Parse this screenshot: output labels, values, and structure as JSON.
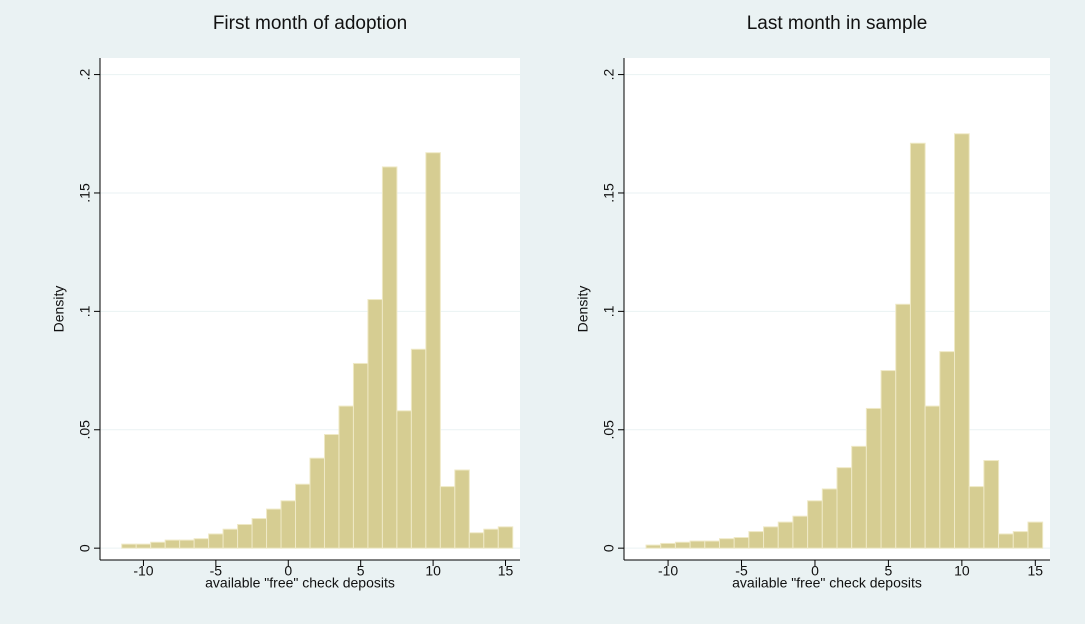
{
  "chart_data": [
    {
      "type": "histogram",
      "title": "First month of adoption",
      "xlabel": "available \"free\" check deposits",
      "ylabel": "Density",
      "bins": [
        -11.5,
        -10.5,
        -9.5,
        -8.5,
        -7.5,
        -6.5,
        -5.5,
        -4.5,
        -3.5,
        -2.5,
        -1.5,
        -0.5,
        0.5,
        1.5,
        2.5,
        3.5,
        4.5,
        5.5,
        6.5,
        7.5,
        8.5,
        9.5,
        10.5,
        11.5,
        12.5,
        13.5,
        14.5,
        15.5
      ],
      "values": [
        0.0017,
        0.0017,
        0.0025,
        0.0034,
        0.0034,
        0.004,
        0.006,
        0.008,
        0.01,
        0.0125,
        0.0165,
        0.02,
        0.027,
        0.038,
        0.048,
        0.06,
        0.078,
        0.105,
        0.161,
        0.058,
        0.084,
        0.167,
        0.026,
        0.033,
        0.0065,
        0.008,
        0.009
      ],
      "color": "#d6cd92",
      "xlim": [
        -13,
        16
      ],
      "ylim": [
        -0.005,
        0.207
      ],
      "xticks": [
        -10,
        -5,
        0,
        5,
        10,
        15
      ],
      "yticks": [
        0,
        {
          "value": 0.05,
          "label": ".05"
        },
        {
          "value": 0.1,
          "label": ".1"
        },
        {
          "value": 0.15,
          "label": ".15"
        },
        {
          "value": 0.2,
          "label": ".2"
        }
      ],
      "grid": true
    },
    {
      "type": "histogram",
      "title": "Last month in sample",
      "xlabel": "available \"free\" check deposits",
      "ylabel": "Density",
      "bins": [
        -11.5,
        -10.5,
        -9.5,
        -8.5,
        -7.5,
        -6.5,
        -5.5,
        -4.5,
        -3.5,
        -2.5,
        -1.5,
        -0.5,
        0.5,
        1.5,
        2.5,
        3.5,
        4.5,
        5.5,
        6.5,
        7.5,
        8.5,
        9.5,
        10.5,
        11.5,
        12.5,
        13.5,
        14.5,
        15.5
      ],
      "values": [
        0.0013,
        0.002,
        0.0025,
        0.003,
        0.003,
        0.004,
        0.0045,
        0.007,
        0.009,
        0.011,
        0.0135,
        0.02,
        0.025,
        0.034,
        0.043,
        0.059,
        0.075,
        0.103,
        0.171,
        0.06,
        0.083,
        0.175,
        0.026,
        0.037,
        0.006,
        0.007,
        0.011
      ],
      "color": "#d6cd92",
      "xlim": [
        -13,
        16
      ],
      "ylim": [
        -0.005,
        0.207
      ],
      "xticks": [
        -10,
        -5,
        0,
        5,
        10,
        15
      ],
      "yticks": [
        0,
        {
          "value": 0.05,
          "label": ".05"
        },
        {
          "value": 0.1,
          "label": ".1"
        },
        {
          "value": 0.15,
          "label": ".15"
        },
        {
          "value": 0.2,
          "label": ".2"
        }
      ],
      "grid": true
    }
  ]
}
